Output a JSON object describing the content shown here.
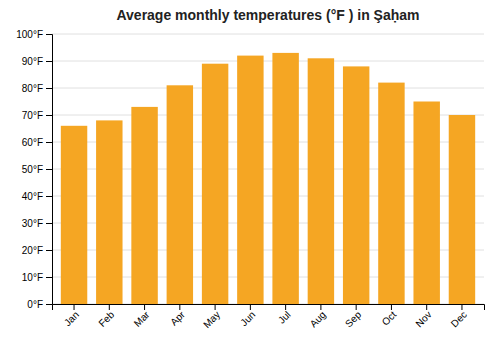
{
  "chart_data": {
    "type": "bar",
    "title": "Average monthly temperatures (°F ) in Şaḥam",
    "categories": [
      "Jan",
      "Feb",
      "Mar",
      "Apr",
      "May",
      "Jun",
      "Jul",
      "Aug",
      "Sep",
      "Oct",
      "Nov",
      "Dec"
    ],
    "values": [
      66,
      68,
      73,
      81,
      89,
      92,
      93,
      91,
      88,
      82,
      75,
      70
    ],
    "color": "#F5A623",
    "ylim": [
      0,
      100
    ],
    "yticks": [
      {
        "value": 0,
        "label": "0°F"
      },
      {
        "value": 10,
        "label": "10°F"
      },
      {
        "value": 20,
        "label": "20°F"
      },
      {
        "value": 30,
        "label": "30°F"
      },
      {
        "value": 40,
        "label": "40°F"
      },
      {
        "value": 50,
        "label": "50°F"
      },
      {
        "value": 60,
        "label": "60°F"
      },
      {
        "value": 70,
        "label": "70°F"
      },
      {
        "value": 80,
        "label": "80°F"
      },
      {
        "value": 90,
        "label": "90°F"
      },
      {
        "value": 100,
        "label": "100°F"
      }
    ],
    "grid": true
  }
}
